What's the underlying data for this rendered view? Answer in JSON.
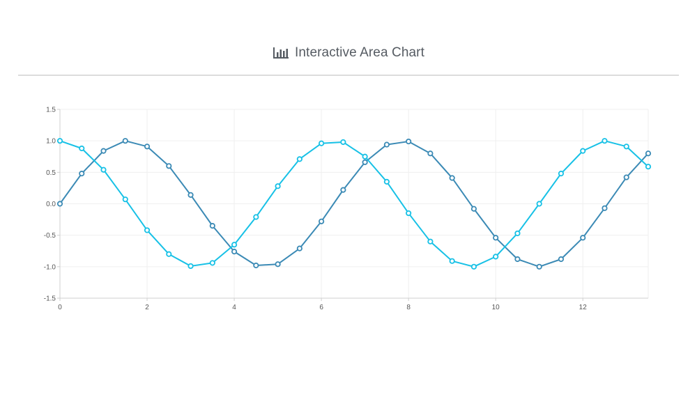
{
  "header": {
    "title": "Interactive Area Chart",
    "icon": "bar-chart-icon"
  },
  "chart_data": {
    "type": "line",
    "title": "Interactive Area Chart",
    "xlabel": "",
    "ylabel": "",
    "xlim": [
      0,
      13.5
    ],
    "ylim": [
      -1.5,
      1.5
    ],
    "x_ticks": [
      "0",
      "2",
      "4",
      "6",
      "8",
      "10",
      "12"
    ],
    "y_ticks": [
      "1.5",
      "1.0",
      "0.5",
      "0.0",
      "-0.5",
      "-1.0",
      "-1.5"
    ],
    "grid": true,
    "x": [
      0,
      0.5,
      1,
      1.5,
      2,
      2.5,
      3,
      3.5,
      4,
      4.5,
      5,
      5.5,
      6,
      6.5,
      7,
      7.5,
      8,
      8.5,
      9,
      9.5,
      10,
      10.5,
      11,
      11.5,
      12,
      12.5,
      13,
      13.5
    ],
    "series": [
      {
        "color": "#3b8ab5",
        "values": [
          0.0,
          0.48,
          0.84,
          1.0,
          0.91,
          0.6,
          0.14,
          -0.35,
          -0.76,
          -0.98,
          -0.96,
          -0.71,
          -0.28,
          0.22,
          0.66,
          0.94,
          0.99,
          0.8,
          0.41,
          -0.08,
          -0.54,
          -0.88,
          -1.0,
          -0.88,
          -0.54,
          -0.07,
          0.42,
          0.8
        ]
      },
      {
        "color": "#17c1e6",
        "values": [
          1.0,
          0.88,
          0.54,
          0.07,
          -0.42,
          -0.8,
          -0.99,
          -0.94,
          -0.65,
          -0.21,
          0.28,
          0.71,
          0.96,
          0.98,
          0.75,
          0.35,
          -0.15,
          -0.6,
          -0.91,
          -1.0,
          -0.84,
          -0.47,
          0.0,
          0.48,
          0.84,
          1.0,
          0.91,
          0.59
        ]
      }
    ]
  }
}
